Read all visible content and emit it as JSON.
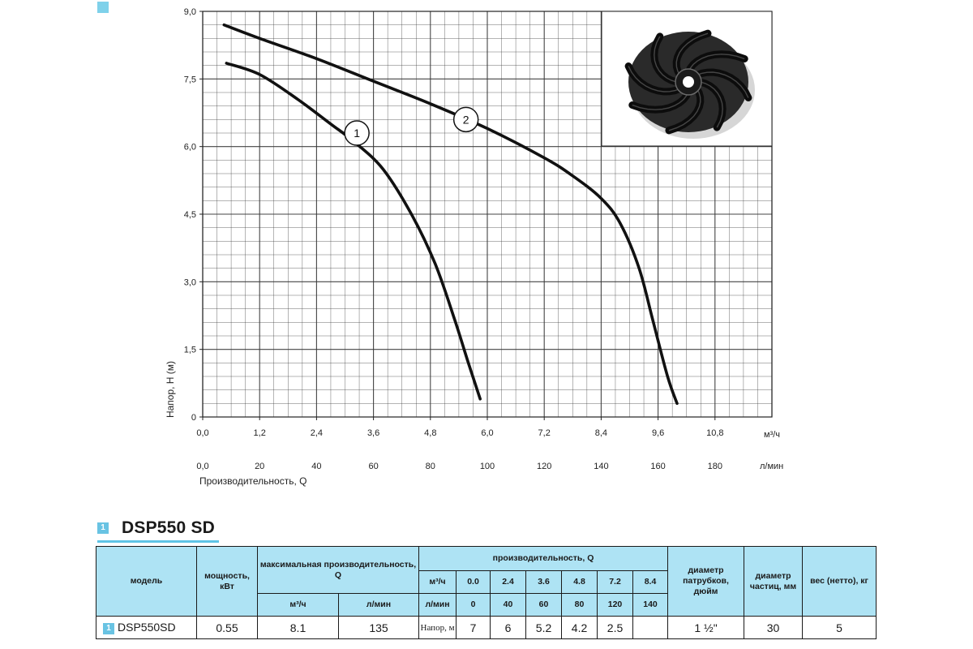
{
  "chart_data": {
    "type": "line",
    "ylabel": "Напор, H (м)",
    "xlabel": "Производительность, Q",
    "x_unit": "м³/ч",
    "x2_unit": "л/мин",
    "x_ticks": [
      "0,0",
      "1,2",
      "2,4",
      "3,6",
      "4,8",
      "6,0",
      "7,2",
      "8,4",
      "9,6",
      "10,8"
    ],
    "x_tick_values": [
      0,
      1.2,
      2.4,
      3.6,
      4.8,
      6.0,
      7.2,
      8.4,
      9.6,
      10.8
    ],
    "x2_ticks": [
      "0,0",
      "20",
      "40",
      "60",
      "80",
      "100",
      "120",
      "140",
      "160",
      "180"
    ],
    "y_ticks": [
      "0",
      "1,5",
      "3,0",
      "4,5",
      "6,0",
      "7,5",
      "9,0"
    ],
    "y_tick_values": [
      0,
      1.5,
      3.0,
      4.5,
      6.0,
      7.5,
      9.0
    ],
    "xlim": [
      0,
      12.0
    ],
    "ylim": [
      0,
      9.0
    ],
    "grid": true,
    "series": [
      {
        "name": "1",
        "points": [
          [
            0.5,
            7.85
          ],
          [
            1.2,
            7.6
          ],
          [
            2.0,
            7.05
          ],
          [
            2.7,
            6.5
          ],
          [
            3.2,
            6.1
          ],
          [
            3.8,
            5.5
          ],
          [
            4.4,
            4.5
          ],
          [
            4.9,
            3.4
          ],
          [
            5.3,
            2.2
          ],
          [
            5.6,
            1.2
          ],
          [
            5.85,
            0.4
          ]
        ]
      },
      {
        "name": "2",
        "points": [
          [
            0.45,
            8.7
          ],
          [
            1.2,
            8.4
          ],
          [
            2.4,
            7.95
          ],
          [
            3.6,
            7.45
          ],
          [
            4.8,
            6.95
          ],
          [
            6.0,
            6.4
          ],
          [
            7.2,
            5.75
          ],
          [
            7.8,
            5.35
          ],
          [
            8.4,
            4.85
          ],
          [
            8.8,
            4.3
          ],
          [
            9.2,
            3.3
          ],
          [
            9.5,
            2.1
          ],
          [
            9.8,
            0.9
          ],
          [
            10.0,
            0.3
          ]
        ]
      }
    ],
    "curve_labels": [
      {
        "text": "1",
        "x": 3.25,
        "y": 6.3
      },
      {
        "text": "2",
        "x": 5.55,
        "y": 6.6
      }
    ]
  },
  "colors": {
    "accent": "#5fc4e6",
    "header_bg": "#aee3f4",
    "grid": "#3a3a3a",
    "curve": "#111111"
  },
  "inset_image": "impeller-photo",
  "section": {
    "badge": "1",
    "title": "DSP550 SD"
  },
  "table": {
    "headers": {
      "model": "модель",
      "power": "мощность, кВт",
      "max_flow": "максимальная производительность, Q",
      "max_flow_m3": "м³/ч",
      "max_flow_lmin": "л/мин",
      "flow": "производительность, Q",
      "flow_m3_label": "м³/ч",
      "flow_lmin_label": "л/мин",
      "flow_m3": [
        "0.0",
        "2.4",
        "3.6",
        "4.8",
        "7.2",
        "8.4"
      ],
      "flow_lmin": [
        "0",
        "40",
        "60",
        "80",
        "120",
        "140"
      ],
      "pipe_diameter": "диаметр патрубков, дюйм",
      "particle_diameter": "диаметр частиц, мм",
      "weight": "вес (нетто), кг"
    },
    "row": {
      "badge": "1",
      "model": "DSP550SD",
      "power": "0.55",
      "max_m3": "8.1",
      "max_lmin": "135",
      "head_label": "Напор, м",
      "heads": [
        "7",
        "6",
        "5.2",
        "4.2",
        "2.5",
        ""
      ],
      "pipe": "1 ½\"",
      "particle": "30",
      "weight": "5"
    }
  }
}
